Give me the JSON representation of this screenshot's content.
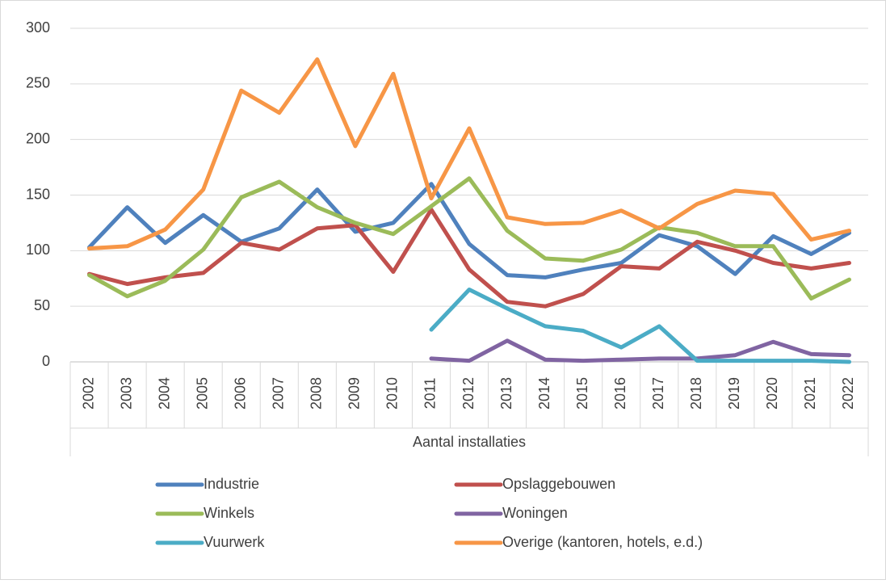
{
  "chart_data": {
    "type": "line",
    "x_label": "Aantal installaties",
    "categories": [
      "2002",
      "2003",
      "2004",
      "2005",
      "2006",
      "2007",
      "2008",
      "2009",
      "2010",
      "2011",
      "2012",
      "2013",
      "2014",
      "2015",
      "2016",
      "2017",
      "2018",
      "2019",
      "2020",
      "2021",
      "2022"
    ],
    "series": [
      {
        "name": "Industrie",
        "color": "#4f81bd",
        "values": [
          103,
          139,
          107,
          132,
          108,
          120,
          155,
          117,
          125,
          160,
          106,
          78,
          76,
          83,
          89,
          114,
          104,
          79,
          113,
          97,
          116
        ]
      },
      {
        "name": "Opslaggebouwen",
        "color": "#c0504d",
        "values": [
          79,
          70,
          76,
          80,
          107,
          101,
          120,
          123,
          81,
          137,
          83,
          54,
          50,
          61,
          86,
          84,
          108,
          100,
          89,
          84,
          89
        ]
      },
      {
        "name": "Winkels",
        "color": "#9bbb59",
        "values": [
          78,
          59,
          73,
          101,
          148,
          162,
          139,
          125,
          115,
          140,
          165,
          118,
          93,
          91,
          101,
          121,
          116,
          104,
          104,
          57,
          74
        ]
      },
      {
        "name": "Woningen",
        "color": "#8064a2",
        "values": [
          null,
          null,
          null,
          null,
          null,
          null,
          null,
          null,
          null,
          3,
          1,
          19,
          2,
          1,
          2,
          3,
          3,
          6,
          18,
          7,
          6
        ]
      },
      {
        "name": "Vuurwerk",
        "color": "#4bacc6",
        "values": [
          null,
          null,
          null,
          null,
          null,
          null,
          null,
          null,
          null,
          29,
          65,
          48,
          32,
          28,
          13,
          32,
          1,
          1,
          1,
          1,
          0
        ]
      },
      {
        "name": "Overige (kantoren, hotels, e.d.)",
        "color": "#f79646",
        "values": [
          102,
          104,
          119,
          155,
          244,
          224,
          272,
          194,
          259,
          147,
          210,
          130,
          124,
          125,
          136,
          120,
          142,
          154,
          151,
          110,
          118
        ]
      }
    ],
    "ylim": [
      0,
      300
    ],
    "yticks": [
      0,
      50,
      100,
      150,
      200,
      250,
      300
    ],
    "grid": true,
    "legend": "bottom"
  }
}
